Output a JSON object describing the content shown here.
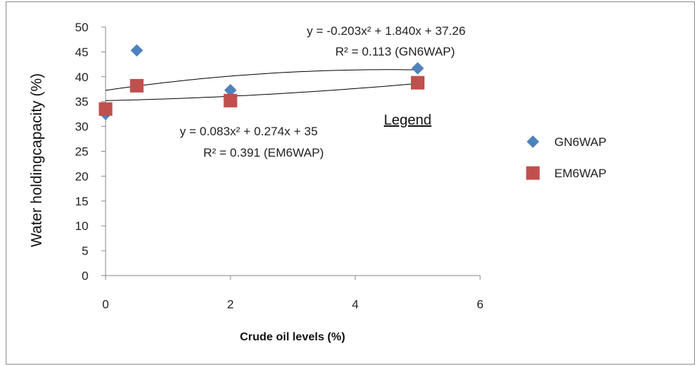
{
  "chart_data": {
    "type": "scatter",
    "title": "",
    "xlabel": "Crude oil levels (%)",
    "ylabel": "Water holdingcapacity (%)",
    "xlim": [
      0,
      6
    ],
    "ylim": [
      0,
      50
    ],
    "x_ticks": [
      "0",
      "2",
      "4",
      "6"
    ],
    "y_ticks": [
      "0",
      "5",
      "10",
      "15",
      "20",
      "25",
      "30",
      "35",
      "40",
      "45",
      "50"
    ],
    "grid": false,
    "legend_title": "Legend",
    "legend_position": "right",
    "series": [
      {
        "name": "GN6WAP",
        "marker": "diamond",
        "color": "#4f81bd",
        "x": [
          0,
          0.5,
          2,
          5
        ],
        "y": [
          32.5,
          45.3,
          37.3,
          41.7
        ],
        "trendline": {
          "type": "polynomial",
          "equation": "y = -0.203x² + 1.840x + 37.26",
          "r2_label": "R² = 0.113 (GN6WAP)",
          "coefficients": [
            -0.203,
            1.84,
            37.26
          ]
        }
      },
      {
        "name": "EM6WAP",
        "marker": "square",
        "color": "#c0504d",
        "x": [
          0,
          0.5,
          2,
          5
        ],
        "y": [
          33.5,
          38.2,
          35.2,
          38.8
        ],
        "trendline": {
          "type": "polynomial",
          "equation": "y = 0.083x² + 0.274x + 35",
          "r2_label": "R² = 0.391 (EM6WAP)",
          "coefficients": [
            0.083,
            0.274,
            35.2
          ]
        }
      }
    ]
  }
}
